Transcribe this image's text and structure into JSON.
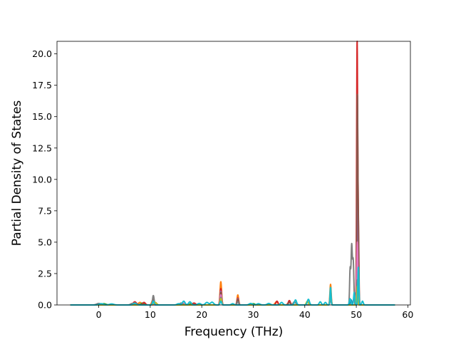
{
  "chart_data": {
    "type": "line",
    "title": "",
    "xlabel": "Frequency (THz)",
    "ylabel": "Partial Density of States",
    "xlim": [
      -8.1,
      60.5
    ],
    "ylim": [
      0,
      21.0
    ],
    "xticks": [
      0,
      10,
      20,
      30,
      40,
      50,
      60
    ],
    "xtick_labels": [
      "0",
      "10",
      "20",
      "30",
      "40",
      "50",
      "60"
    ],
    "yticks": [
      0.0,
      2.5,
      5.0,
      7.5,
      10.0,
      12.5,
      15.0,
      17.5,
      20.0
    ],
    "ytick_labels": [
      "0.0",
      "2.5",
      "5.0",
      "7.5",
      "10.0",
      "12.5",
      "15.0",
      "17.5",
      "20.0"
    ],
    "grid": false,
    "legend": "none",
    "x_range": [
      -5.5,
      57.5
    ],
    "series": [
      {
        "color": "#1f77b4",
        "peaks": [
          [
            0.2,
            0.08,
            0.3
          ],
          [
            7.5,
            0.1,
            0.3
          ],
          [
            10.6,
            0.3,
            0.2
          ],
          [
            23.7,
            0.9,
            0.15
          ],
          [
            27.0,
            0.4,
            0.15
          ],
          [
            45.0,
            1.2,
            0.12
          ],
          [
            49.0,
            0.4,
            0.15
          ],
          [
            50.2,
            1.0,
            0.12
          ]
        ]
      },
      {
        "color": "#ff7f0e",
        "peaks": [
          [
            8.0,
            0.2,
            0.3
          ],
          [
            10.5,
            0.4,
            0.2
          ],
          [
            23.7,
            1.85,
            0.15
          ],
          [
            27.0,
            0.8,
            0.15
          ],
          [
            34.5,
            0.25,
            0.25
          ],
          [
            37.0,
            0.25,
            0.25
          ],
          [
            45.0,
            1.65,
            0.12
          ],
          [
            50.2,
            3.0,
            0.1
          ]
        ]
      },
      {
        "color": "#2ca02c",
        "peaks": [
          [
            1.0,
            0.1,
            0.4
          ],
          [
            8.5,
            0.15,
            0.3
          ],
          [
            18.0,
            0.12,
            0.3
          ],
          [
            23.7,
            0.7,
            0.15
          ],
          [
            30.0,
            0.1,
            0.3
          ],
          [
            45.0,
            0.8,
            0.12
          ],
          [
            50.2,
            2.0,
            0.1
          ]
        ]
      },
      {
        "color": "#d62728",
        "peaks": [
          [
            7.0,
            0.25,
            0.3
          ],
          [
            8.8,
            0.2,
            0.25
          ],
          [
            10.6,
            0.55,
            0.15
          ],
          [
            18.5,
            0.15,
            0.3
          ],
          [
            23.7,
            1.3,
            0.15
          ],
          [
            27.0,
            0.55,
            0.15
          ],
          [
            34.6,
            0.3,
            0.2
          ],
          [
            37.0,
            0.35,
            0.2
          ],
          [
            45.0,
            1.0,
            0.12
          ],
          [
            50.15,
            20.1,
            0.09
          ],
          [
            50.35,
            7.5,
            0.1
          ]
        ]
      },
      {
        "color": "#9467bd",
        "peaks": [
          [
            10.6,
            0.5,
            0.15
          ],
          [
            23.7,
            1.1,
            0.15
          ],
          [
            27.0,
            0.5,
            0.15
          ],
          [
            45.0,
            0.7,
            0.12
          ],
          [
            50.2,
            12.0,
            0.09
          ]
        ]
      },
      {
        "color": "#8c564b",
        "peaks": [
          [
            10.6,
            0.4,
            0.15
          ],
          [
            23.7,
            1.0,
            0.15
          ],
          [
            27.0,
            0.45,
            0.15
          ],
          [
            37.0,
            0.2,
            0.2
          ],
          [
            45.0,
            0.8,
            0.12
          ],
          [
            50.2,
            16.0,
            0.09
          ],
          [
            50.4,
            6.0,
            0.1
          ]
        ]
      },
      {
        "color": "#e377c2",
        "peaks": [
          [
            16.5,
            0.15,
            0.3
          ],
          [
            23.7,
            0.8,
            0.15
          ],
          [
            45.0,
            0.6,
            0.12
          ],
          [
            50.2,
            5.0,
            0.1
          ]
        ]
      },
      {
        "color": "#7f7f7f",
        "peaks": [
          [
            0.0,
            0.12,
            0.4
          ],
          [
            6.5,
            0.12,
            0.3
          ],
          [
            10.6,
            0.75,
            0.15
          ],
          [
            16.0,
            0.15,
            0.3
          ],
          [
            23.7,
            0.6,
            0.15
          ],
          [
            27.0,
            0.25,
            0.15
          ],
          [
            38.0,
            0.25,
            0.25
          ],
          [
            45.0,
            0.5,
            0.12
          ],
          [
            48.8,
            2.8,
            0.1
          ],
          [
            49.1,
            4.7,
            0.12
          ],
          [
            49.4,
            3.5,
            0.12
          ],
          [
            50.2,
            2.0,
            0.1
          ]
        ]
      },
      {
        "color": "#bcbd22",
        "peaks": [
          [
            11.0,
            0.2,
            0.25
          ],
          [
            23.7,
            0.5,
            0.15
          ],
          [
            40.5,
            0.3,
            0.2
          ],
          [
            45.0,
            0.9,
            0.12
          ],
          [
            50.2,
            1.5,
            0.1
          ]
        ]
      },
      {
        "color": "#17becf",
        "peaks": [
          [
            0.5,
            0.1,
            0.4
          ],
          [
            2.5,
            0.08,
            0.4
          ],
          [
            7.0,
            0.15,
            0.3
          ],
          [
            10.6,
            0.3,
            0.15
          ],
          [
            15.5,
            0.1,
            0.3
          ],
          [
            16.5,
            0.3,
            0.25
          ],
          [
            17.7,
            0.25,
            0.25
          ],
          [
            19.5,
            0.12,
            0.3
          ],
          [
            21.0,
            0.2,
            0.3
          ],
          [
            22.0,
            0.22,
            0.3
          ],
          [
            23.7,
            0.3,
            0.15
          ],
          [
            26.0,
            0.1,
            0.25
          ],
          [
            29.5,
            0.12,
            0.3
          ],
          [
            31.0,
            0.1,
            0.3
          ],
          [
            33.0,
            0.12,
            0.3
          ],
          [
            35.5,
            0.2,
            0.25
          ],
          [
            38.2,
            0.4,
            0.2
          ],
          [
            40.7,
            0.45,
            0.2
          ],
          [
            43.0,
            0.25,
            0.2
          ],
          [
            44.0,
            0.2,
            0.2
          ],
          [
            45.0,
            1.4,
            0.1
          ],
          [
            48.8,
            0.5,
            0.15
          ],
          [
            49.6,
            1.0,
            0.12
          ],
          [
            50.4,
            3.0,
            0.1
          ],
          [
            51.2,
            0.3,
            0.15
          ]
        ]
      }
    ]
  }
}
